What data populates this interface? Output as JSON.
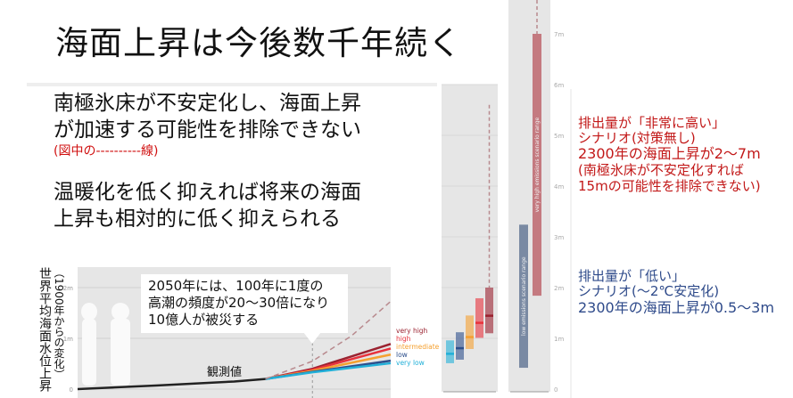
{
  "slide": {
    "title": "海面上昇は今後数千年続く",
    "points": [
      "南極氷床が不安定化し、海面上昇",
      "が加速する可能性を排除できない",
      "(図中の----------線)",
      "温暖化を低く抑えれば将来の海面",
      "上昇も相対的に低く抑えられる"
    ],
    "callout": [
      "2050年には、100年に1度の",
      "高潮の頻度が20～30倍になり",
      "10億人が被災する"
    ],
    "observed_label": "観測値",
    "y_axis_title": "世界平均海面水位上昇",
    "y_axis_subtitle": "（1900年からの変化）",
    "high_scenario_note": [
      "排出量が「非常に高い」",
      "シナリオ(対策無し)",
      "2300年の海面上昇が2～7m",
      "(南極氷床が不安定化すれば",
      " 15mの可能性を排除できない)"
    ],
    "low_scenario_note": [
      "排出量が「低い」",
      "シナリオ(～2℃安定化)",
      "2300年の海面上昇が0.5～3m"
    ],
    "colors": {
      "note_red": "#c21818",
      "note_blue": "#2e4a8a",
      "panel_bg": "#e6e6e6"
    }
  },
  "chart_data": [
    {
      "type": "line",
      "xlim": [
        1900,
        2100
      ],
      "ylim": [
        0,
        2.5
      ],
      "y_ticks": [
        "0",
        "1m",
        "2m"
      ],
      "observed": {
        "x": [
          1900,
          1950,
          2000,
          2020
        ],
        "y": [
          0,
          0.07,
          0.15,
          0.2
        ]
      },
      "series": [
        {
          "name": "very high",
          "color": "#9b2230",
          "x": [
            2020,
            2050,
            2100
          ],
          "y": [
            0.2,
            0.4,
            0.89
          ]
        },
        {
          "name": "high",
          "color": "#e8323c",
          "x": [
            2020,
            2050,
            2100
          ],
          "y": [
            0.2,
            0.38,
            0.8
          ]
        },
        {
          "name": "intermediate",
          "color": "#f5a030",
          "x": [
            2020,
            2050,
            2100
          ],
          "y": [
            0.2,
            0.36,
            0.68
          ]
        },
        {
          "name": "low",
          "color": "#2d4f8c",
          "x": [
            2020,
            2050,
            2100
          ],
          "y": [
            0.2,
            0.34,
            0.56
          ]
        },
        {
          "name": "very low",
          "color": "#22b0d8",
          "x": [
            2020,
            2050,
            2100
          ],
          "y": [
            0.2,
            0.33,
            0.51
          ]
        }
      ],
      "low_likelihood_high_impact": {
        "x": [
          2020,
          2050,
          2075,
          2100
        ],
        "y": [
          0.2,
          0.55,
          1.05,
          1.73
        ],
        "color": "#b88a8e",
        "style": "dashed"
      }
    },
    {
      "type": "bar",
      "year": 2100,
      "ylim": [
        0,
        7.5
      ],
      "ranges": [
        {
          "name": "very low",
          "color": "#22b0d8",
          "low": 0.51,
          "high": 0.96,
          "median": 0.7
        },
        {
          "name": "low",
          "color": "#2d4f8c",
          "low": 0.58,
          "high": 1.12,
          "median": 0.81
        },
        {
          "name": "intermediate",
          "color": "#f5a030",
          "low": 0.79,
          "high": 1.45,
          "median": 1.03
        },
        {
          "name": "high",
          "color": "#e8323c",
          "low": 1.01,
          "high": 1.79,
          "median": 1.31
        },
        {
          "name": "very high",
          "color": "#9b2230",
          "low": 1.1,
          "high": 2.0,
          "median": 1.45,
          "dashed_to": 5.6
        }
      ]
    },
    {
      "type": "bar",
      "year": 2300,
      "ylim": [
        0,
        7.5
      ],
      "y_ticks": [
        "0",
        "1m",
        "2m",
        "3m",
        "4m",
        "5m",
        "6m",
        "7m"
      ],
      "ranges": [
        {
          "name": "low emissions scenario range",
          "color": "#7a8aa3",
          "low": 0.42,
          "high": 3.24
        },
        {
          "name": "very high emissions scenario range",
          "color": "#c47a80",
          "low": 1.84,
          "high": 7.0,
          "dashed_to": 15
        }
      ]
    }
  ]
}
